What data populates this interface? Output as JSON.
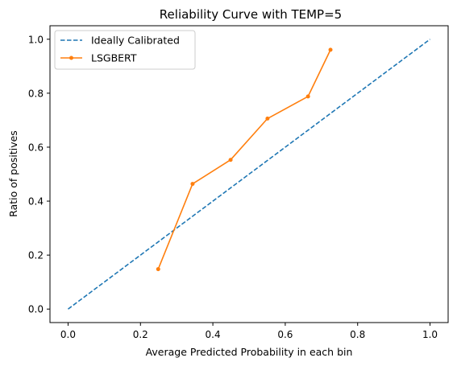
{
  "chart_data": {
    "type": "line",
    "title": "Reliability Curve with TEMP=5",
    "xlabel": "Average Predicted Probability in each bin",
    "ylabel": "Ratio of positives",
    "xlim": [
      -0.05,
      1.05
    ],
    "ylim": [
      -0.05,
      1.05
    ],
    "xticks": [
      "0.0",
      "0.2",
      "0.4",
      "0.6",
      "0.8",
      "1.0"
    ],
    "yticks": [
      "0.0",
      "0.2",
      "0.4",
      "0.6",
      "0.8",
      "1.0"
    ],
    "grid": false,
    "legend_position": "top-left",
    "series": [
      {
        "name": "Ideally Calibrated",
        "style": "dashed",
        "marker": "none",
        "color": "#1f77b4",
        "x": [
          0.0,
          1.0
        ],
        "y": [
          0.0,
          1.0
        ]
      },
      {
        "name": "LSGBERT",
        "style": "solid",
        "marker": "circle",
        "color": "#ff7f0e",
        "x": [
          0.249,
          0.344,
          0.449,
          0.551,
          0.663,
          0.725
        ],
        "y": [
          0.148,
          0.464,
          0.553,
          0.706,
          0.788,
          0.961
        ]
      }
    ]
  }
}
